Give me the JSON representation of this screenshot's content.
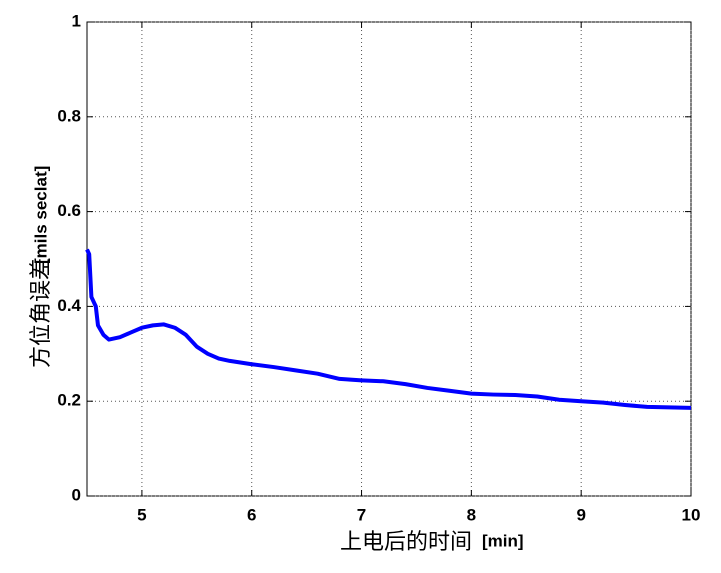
{
  "chart_data": {
    "type": "line",
    "xlabel": "上电后的时间",
    "xlabel_unit": "[min]",
    "ylabel": "方位角误差",
    "ylabel_unit": "[mils seclat]",
    "xlim": [
      4.5,
      10
    ],
    "xticks": [
      5,
      6,
      7,
      8,
      9,
      10
    ],
    "ylim": [
      0,
      1
    ],
    "yticks": [
      0,
      0.2,
      0.4,
      0.6,
      0.8,
      1
    ],
    "grid": true,
    "series": [
      {
        "color": "#0000ff",
        "x": [
          4.5,
          4.52,
          4.54,
          4.58,
          4.6,
          4.65,
          4.7,
          4.8,
          4.9,
          5.0,
          5.1,
          5.2,
          5.3,
          5.4,
          5.5,
          5.6,
          5.7,
          5.8,
          6.0,
          6.2,
          6.4,
          6.6,
          6.8,
          7.0,
          7.2,
          7.4,
          7.6,
          7.8,
          8.0,
          8.2,
          8.4,
          8.6,
          8.8,
          9.0,
          9.2,
          9.4,
          9.6,
          9.8,
          10.0
        ],
        "values": [
          0.52,
          0.51,
          0.42,
          0.4,
          0.36,
          0.34,
          0.33,
          0.335,
          0.345,
          0.355,
          0.36,
          0.362,
          0.355,
          0.34,
          0.315,
          0.3,
          0.29,
          0.285,
          0.278,
          0.272,
          0.265,
          0.258,
          0.247,
          0.244,
          0.242,
          0.236,
          0.228,
          0.222,
          0.216,
          0.214,
          0.213,
          0.21,
          0.203,
          0.2,
          0.197,
          0.192,
          0.188,
          0.187,
          0.186
        ]
      }
    ]
  }
}
